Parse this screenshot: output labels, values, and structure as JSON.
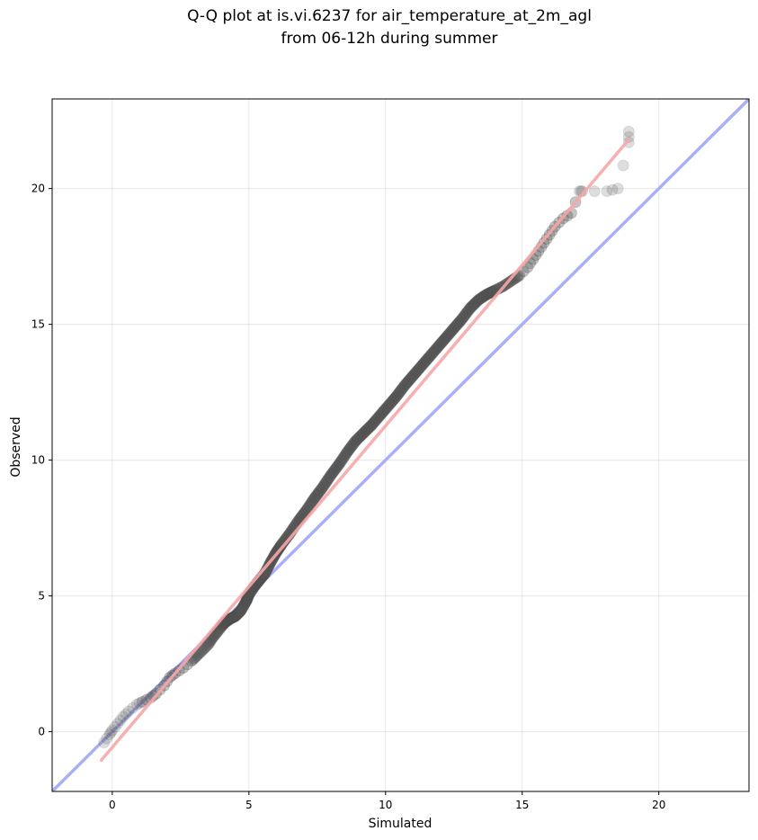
{
  "chart_data": {
    "type": "scatter",
    "title_line1": "Q-Q plot at is.vi.6237 for air_temperature_at_2m_agl",
    "title_line2": "from 06-12h during summer",
    "xlabel": "Simulated",
    "ylabel": "Observed",
    "xlim": [
      -2.2,
      23.3
    ],
    "ylim": [
      -2.2,
      23.3
    ],
    "xticks": [
      0,
      5,
      10,
      15,
      20
    ],
    "yticks": [
      0,
      5,
      10,
      15,
      20
    ],
    "grid": true,
    "legend": "none",
    "reference_line": {
      "name": "1:1",
      "color": "#aab0f8",
      "from": [
        -2.2,
        -2.2
      ],
      "to": [
        23.3,
        23.3
      ]
    },
    "fit_line": {
      "color": "#f7a6a6",
      "from": [
        -0.4,
        -1.05
      ],
      "to": [
        18.9,
        21.8
      ]
    },
    "quantiles_x": [
      -0.3,
      -0.1,
      0.0,
      0.2,
      0.4,
      0.6,
      0.9,
      1.1,
      1.4,
      1.6,
      1.9,
      2.1,
      2.3,
      2.6,
      2.9,
      3.2,
      3.5,
      3.7,
      3.9,
      4.1,
      4.3,
      4.5,
      4.7,
      4.9,
      5.0,
      5.2,
      5.4,
      5.6,
      5.8,
      6.0,
      6.2,
      6.5,
      6.8,
      7.1,
      7.4,
      7.7,
      8.0,
      8.3,
      8.6,
      8.9,
      9.2,
      9.5,
      9.8,
      10.1,
      10.4,
      10.7,
      11.0,
      11.3,
      11.6,
      11.9,
      12.2,
      12.5,
      12.8,
      13.1,
      13.4,
      13.7,
      14.0,
      14.3,
      14.6,
      14.9,
      15.2,
      15.4,
      15.6,
      15.8,
      16.0,
      16.2,
      16.5,
      16.8,
      17.1,
      17.2,
      18.1,
      18.5,
      18.9,
      18.9
    ],
    "quantiles_y": [
      -0.4,
      -0.1,
      0.05,
      0.3,
      0.55,
      0.75,
      1.0,
      1.1,
      1.25,
      1.4,
      1.7,
      2.0,
      2.15,
      2.35,
      2.6,
      2.9,
      3.2,
      3.5,
      3.75,
      4.0,
      4.15,
      4.25,
      4.45,
      4.8,
      5.05,
      5.35,
      5.6,
      5.85,
      6.25,
      6.6,
      6.9,
      7.3,
      7.75,
      8.15,
      8.6,
      9.0,
      9.45,
      9.85,
      10.3,
      10.7,
      11.0,
      11.3,
      11.65,
      12.0,
      12.35,
      12.75,
      13.1,
      13.45,
      13.8,
      14.15,
      14.5,
      14.85,
      15.2,
      15.6,
      15.9,
      16.1,
      16.25,
      16.4,
      16.6,
      16.8,
      17.1,
      17.4,
      17.7,
      18.0,
      18.3,
      18.6,
      18.9,
      19.1,
      19.9,
      19.9,
      19.9,
      20.0,
      21.7,
      22.1
    ]
  }
}
